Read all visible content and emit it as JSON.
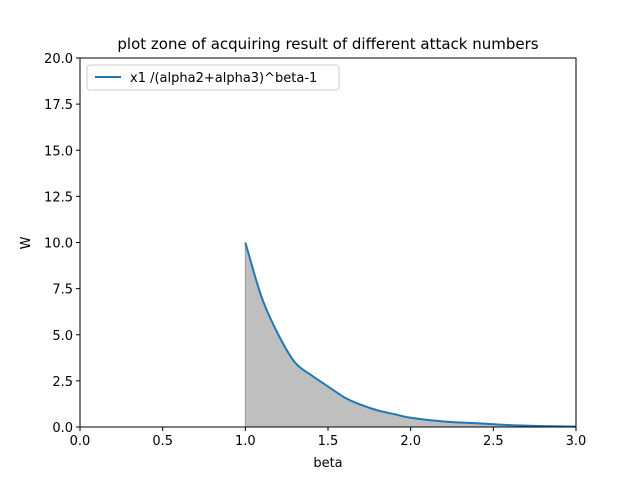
{
  "chart_data": {
    "type": "area",
    "title": "plot zone of acquiring result of different attack numbers",
    "xlabel": "beta",
    "ylabel": "W",
    "xlim": [
      0.0,
      3.0
    ],
    "ylim": [
      0.0,
      20.0
    ],
    "xticks": [
      "0.0",
      "0.5",
      "1.0",
      "1.5",
      "2.0",
      "2.5",
      "3.0"
    ],
    "yticks": [
      "0.0",
      "2.5",
      "5.0",
      "7.5",
      "10.0",
      "12.5",
      "15.0",
      "17.5",
      "20.0"
    ],
    "grid": false,
    "legend_position": "upper-left",
    "series": [
      {
        "name": "x1 /(alpha2+alpha3)^beta-1",
        "color": "#1f77b4",
        "fill_color": "#bfbfbf",
        "fill_to_zero": true,
        "x": [
          1.0,
          1.1,
          1.2,
          1.3,
          1.4,
          1.5,
          1.6,
          1.7,
          1.8,
          1.9,
          2.0,
          2.2,
          2.4,
          2.6,
          2.8,
          3.0
        ],
        "y": [
          10.0,
          7.0,
          5.0,
          3.5,
          2.8,
          2.2,
          1.6,
          1.2,
          0.9,
          0.7,
          0.5,
          0.3,
          0.2,
          0.1,
          0.05,
          0.02
        ]
      }
    ]
  }
}
